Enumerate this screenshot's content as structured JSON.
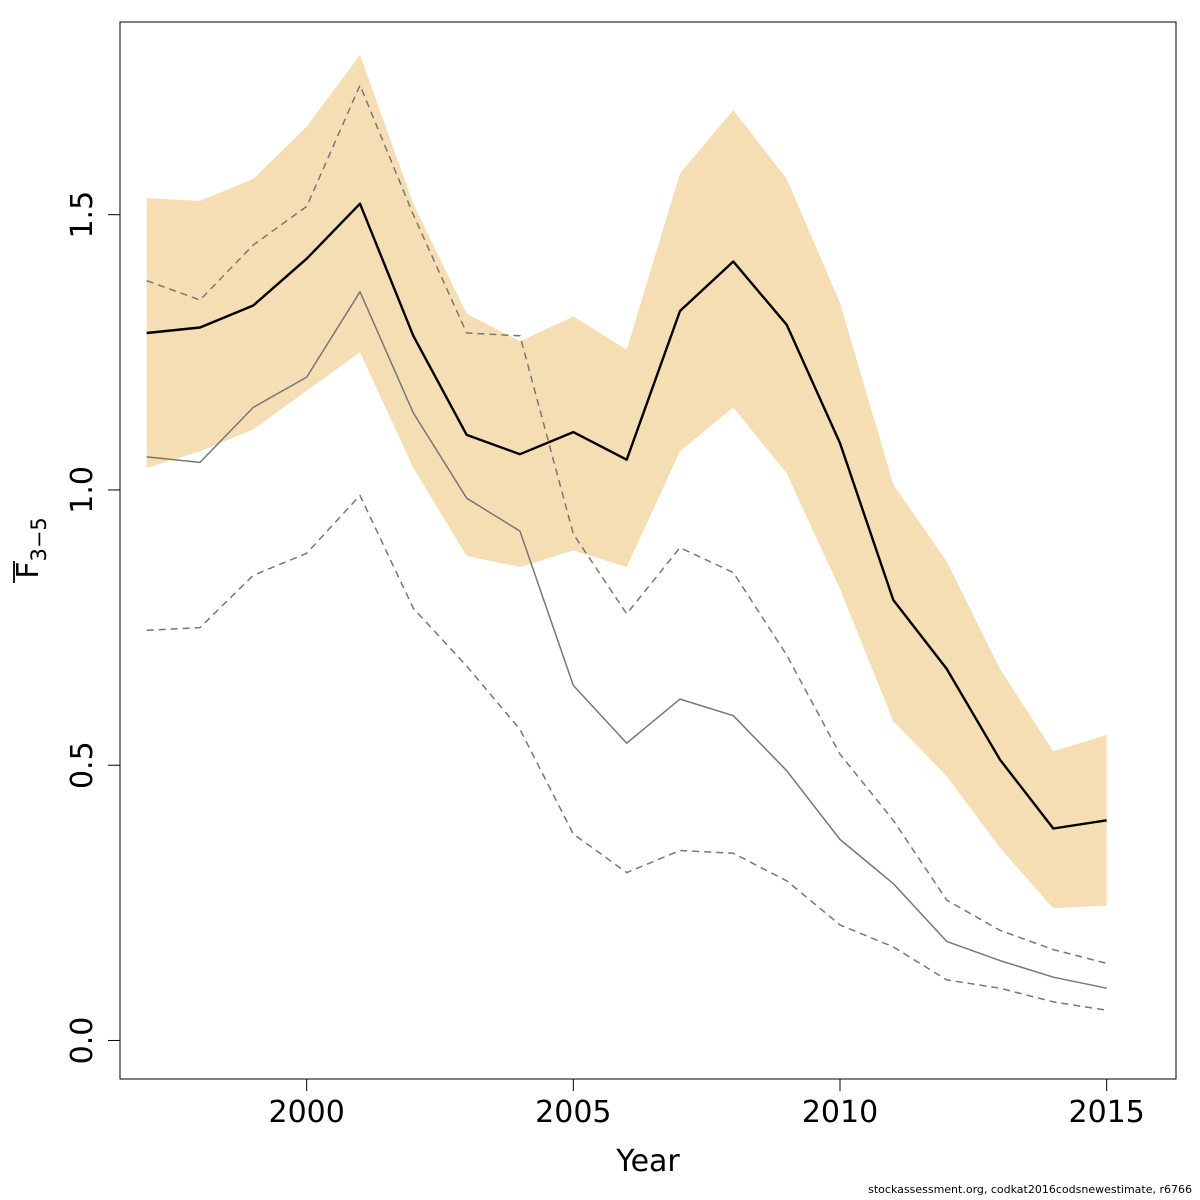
{
  "footer_text": "stockassessment.org, codkat2016codsnewestimate, r6766",
  "chart_data": {
    "type": "line",
    "title": "",
    "xlabel": "Year",
    "ylabel": {
      "main": "F",
      "sub": "3−5"
    },
    "xlim": [
      1996.5,
      2016.3
    ],
    "ylim": [
      -0.07,
      1.85
    ],
    "xticks": [
      2000,
      2005,
      2010,
      2015
    ],
    "yticks": [
      0.0,
      0.5,
      1.0,
      1.5
    ],
    "ytick_labels": [
      "0.0",
      "0.5",
      "1.0",
      "1.5"
    ],
    "grid": false,
    "x": [
      1997,
      1998,
      1999,
      2000,
      2001,
      2002,
      2003,
      2004,
      2005,
      2006,
      2007,
      2008,
      2009,
      2010,
      2011,
      2012,
      2013,
      2014,
      2015
    ],
    "colors": {
      "band": "#f5deb3",
      "estimate": "#000000",
      "previous": "#777777"
    },
    "band": {
      "lower": [
        1.04,
        1.07,
        1.11,
        1.18,
        1.25,
        1.04,
        0.88,
        0.86,
        0.89,
        0.86,
        1.07,
        1.15,
        1.03,
        0.82,
        0.58,
        0.48,
        0.35,
        0.24,
        0.245
      ],
      "upper": [
        1.53,
        1.525,
        1.565,
        1.66,
        1.79,
        1.52,
        1.32,
        1.27,
        1.315,
        1.255,
        1.575,
        1.69,
        1.565,
        1.34,
        1.01,
        0.87,
        0.675,
        0.525,
        0.555
      ]
    },
    "series": [
      {
        "style": "estimate",
        "dash": false,
        "values": [
          1.285,
          1.295,
          1.335,
          1.42,
          1.52,
          1.28,
          1.1,
          1.065,
          1.105,
          1.055,
          1.325,
          1.415,
          1.3,
          1.085,
          0.8,
          0.675,
          0.51,
          0.385,
          0.4
        ]
      },
      {
        "style": "previous",
        "dash": false,
        "values": [
          1.06,
          1.05,
          1.15,
          1.205,
          1.36,
          1.14,
          0.985,
          0.925,
          0.645,
          0.54,
          0.62,
          0.59,
          0.49,
          0.365,
          0.285,
          0.18,
          0.145,
          0.115,
          0.095
        ]
      },
      {
        "style": "previous",
        "dash": true,
        "values": [
          1.38,
          1.345,
          1.445,
          1.515,
          1.735,
          1.5,
          1.285,
          1.28,
          0.92,
          0.775,
          0.895,
          0.85,
          0.7,
          0.52,
          0.4,
          0.255,
          0.2,
          0.165,
          0.14
        ]
      },
      {
        "style": "previous",
        "dash": true,
        "values": [
          0.745,
          0.75,
          0.845,
          0.885,
          0.99,
          0.785,
          0.68,
          0.565,
          0.375,
          0.305,
          0.345,
          0.34,
          0.29,
          0.21,
          0.17,
          0.11,
          0.095,
          0.07,
          0.055
        ]
      }
    ]
  }
}
